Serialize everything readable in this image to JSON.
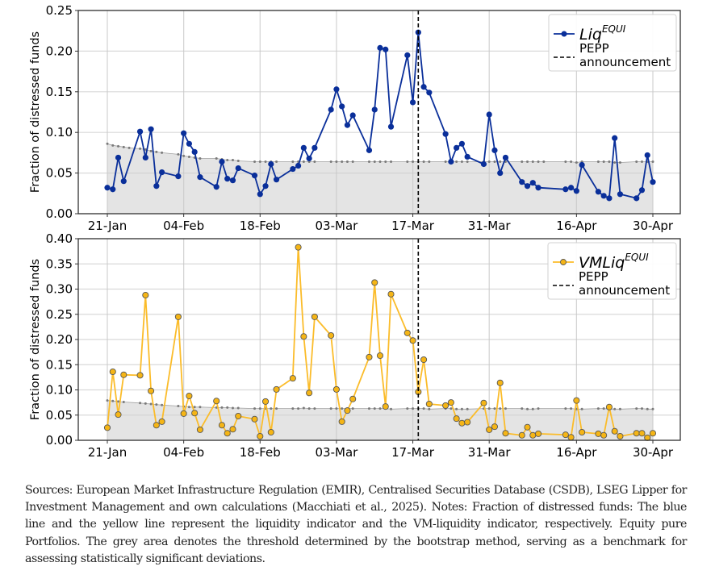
{
  "chart_data": [
    {
      "type": "line",
      "panel": "top",
      "ylabel": "Fraction of distressed funds",
      "xlabel": "",
      "ylim": [
        0.0,
        0.25
      ],
      "yticks": [
        "0.00",
        "0.05",
        "0.10",
        "0.15",
        "0.20",
        "0.25"
      ],
      "ytick_values": [
        0.0,
        0.05,
        0.1,
        0.15,
        0.2,
        0.25
      ],
      "x_unit": "days since 21-Jan",
      "xlim": [
        -5,
        105
      ],
      "xticks": [
        "21-Jan",
        "04-Feb",
        "18-Feb",
        "03-Mar",
        "17-Mar",
        "31-Mar",
        "16-Apr",
        "30-Apr"
      ],
      "xtick_values": [
        0,
        14,
        28,
        42,
        56,
        70,
        86,
        100
      ],
      "grid": true,
      "legend_position": "top-right",
      "vline": {
        "x": 57,
        "label": "PEPP announcement",
        "style": "dashed"
      },
      "series": [
        {
          "name": "Liq",
          "name_superscript": "EQUI",
          "color": "#0a2f9a",
          "marker": "circle",
          "x": [
            0,
            1,
            2,
            3,
            6,
            7,
            8,
            9,
            10,
            13,
            14,
            15,
            16,
            17,
            20,
            21,
            22,
            23,
            24,
            27,
            28,
            29,
            30,
            31,
            34,
            35,
            36,
            37,
            38,
            41,
            42,
            43,
            44,
            45,
            48,
            49,
            50,
            51,
            52,
            55,
            56,
            57,
            58,
            59,
            62,
            63,
            64,
            65,
            66,
            69,
            70,
            71,
            72,
            73,
            76,
            77,
            78,
            79,
            84,
            85,
            86,
            87,
            90,
            91,
            92,
            93,
            94,
            97,
            98,
            99,
            100
          ],
          "values": [
            0.032,
            0.03,
            0.069,
            0.04,
            0.101,
            0.069,
            0.104,
            0.034,
            0.051,
            0.046,
            0.099,
            0.086,
            0.076,
            0.045,
            0.033,
            0.064,
            0.043,
            0.041,
            0.056,
            0.047,
            0.024,
            0.034,
            0.061,
            0.042,
            0.055,
            0.059,
            0.081,
            0.068,
            0.081,
            0.128,
            0.153,
            0.132,
            0.109,
            0.121,
            0.078,
            0.128,
            0.204,
            0.202,
            0.107,
            0.195,
            0.137,
            0.223,
            0.156,
            0.149,
            0.098,
            0.064,
            0.081,
            0.086,
            0.07,
            0.061,
            0.122,
            0.078,
            0.05,
            0.069,
            0.039,
            0.034,
            0.038,
            0.032,
            0.03,
            0.032,
            0.028,
            0.06,
            0.027,
            0.022,
            0.019,
            0.093,
            0.024,
            0.019,
            0.029,
            0.072,
            0.039
          ]
        },
        {
          "name": "Bootstrap threshold",
          "color": "#808080",
          "fill": "#e4e4e4",
          "marker": "small-dot",
          "x": [
            0,
            1,
            2,
            3,
            4,
            6,
            7,
            8,
            9,
            10,
            13,
            14,
            15,
            16,
            17,
            20,
            21,
            22,
            23,
            24,
            27,
            28,
            29,
            30,
            31,
            34,
            35,
            36,
            37,
            38,
            41,
            42,
            43,
            44,
            45,
            48,
            49,
            50,
            51,
            52,
            55,
            56,
            57,
            58,
            59,
            62,
            63,
            64,
            65,
            66,
            69,
            70,
            71,
            72,
            73,
            76,
            77,
            78,
            79,
            80,
            84,
            85,
            86,
            87,
            90,
            91,
            92,
            93,
            94,
            97,
            98,
            99,
            100
          ],
          "values": [
            0.086,
            0.084,
            0.083,
            0.082,
            0.081,
            0.08,
            0.079,
            0.077,
            0.076,
            0.075,
            0.073,
            0.071,
            0.07,
            0.069,
            0.068,
            0.068,
            0.067,
            0.066,
            0.066,
            0.065,
            0.064,
            0.064,
            0.064,
            0.064,
            0.064,
            0.064,
            0.064,
            0.064,
            0.064,
            0.064,
            0.064,
            0.064,
            0.064,
            0.064,
            0.064,
            0.064,
            0.064,
            0.064,
            0.064,
            0.064,
            0.064,
            0.064,
            0.064,
            0.064,
            0.064,
            0.064,
            0.064,
            0.064,
            0.064,
            0.064,
            0.064,
            0.064,
            0.064,
            0.064,
            0.064,
            0.064,
            0.064,
            0.064,
            0.064,
            0.064,
            0.064,
            0.064,
            0.063,
            0.064,
            0.064,
            0.064,
            0.064,
            0.063,
            0.063,
            0.064,
            0.064,
            0.064,
            0.064
          ]
        }
      ]
    },
    {
      "type": "line",
      "panel": "bottom",
      "ylabel": "Fraction of distressed funds",
      "xlabel": "",
      "ylim": [
        0.0,
        0.4
      ],
      "yticks": [
        "0.00",
        "0.05",
        "0.10",
        "0.15",
        "0.20",
        "0.25",
        "0.30",
        "0.35",
        "0.40"
      ],
      "ytick_values": [
        0.0,
        0.05,
        0.1,
        0.15,
        0.2,
        0.25,
        0.3,
        0.35,
        0.4
      ],
      "x_unit": "days since 21-Jan",
      "xlim": [
        -5,
        105
      ],
      "xticks": [
        "21-Jan",
        "04-Feb",
        "18-Feb",
        "03-Mar",
        "17-Mar",
        "31-Mar",
        "16-Apr",
        "30-Apr"
      ],
      "xtick_values": [
        0,
        14,
        28,
        42,
        56,
        70,
        86,
        100
      ],
      "grid": true,
      "legend_position": "top-right",
      "vline": {
        "x": 57,
        "label": "PEPP announcement",
        "style": "dashed"
      },
      "series": [
        {
          "name": "VMLiq",
          "name_superscript": "EQUI",
          "color": "#fbbc2a",
          "marker_fill": "#f5b516",
          "marker_edge": "#555555",
          "marker": "circle",
          "x": [
            0,
            1,
            2,
            3,
            6,
            7,
            8,
            9,
            10,
            13,
            14,
            15,
            16,
            17,
            20,
            21,
            22,
            23,
            24,
            27,
            28,
            29,
            30,
            31,
            34,
            35,
            36,
            37,
            38,
            41,
            42,
            43,
            44,
            45,
            48,
            49,
            50,
            51,
            52,
            55,
            56,
            57,
            58,
            59,
            62,
            63,
            64,
            65,
            66,
            69,
            70,
            71,
            72,
            73,
            76,
            77,
            78,
            79,
            84,
            85,
            86,
            87,
            90,
            91,
            92,
            93,
            94,
            97,
            98,
            99,
            100
          ],
          "values": [
            0.025,
            0.136,
            0.051,
            0.13,
            0.129,
            0.288,
            0.098,
            0.03,
            0.037,
            0.245,
            0.053,
            0.088,
            0.054,
            0.021,
            0.078,
            0.03,
            0.014,
            0.022,
            0.048,
            0.042,
            0.008,
            0.077,
            0.016,
            0.101,
            0.123,
            0.383,
            0.206,
            0.094,
            0.245,
            0.208,
            0.101,
            0.037,
            0.059,
            0.082,
            0.165,
            0.313,
            0.168,
            0.067,
            0.29,
            0.213,
            0.198,
            0.096,
            0.16,
            0.072,
            0.069,
            0.075,
            0.043,
            0.034,
            0.036,
            0.074,
            0.021,
            0.027,
            0.114,
            0.014,
            0.01,
            0.026,
            0.01,
            0.013,
            0.011,
            0.006,
            0.079,
            0.016,
            0.013,
            0.01,
            0.066,
            0.018,
            0.008,
            0.014,
            0.014,
            0.005,
            0.014
          ]
        },
        {
          "name": "Bootstrap threshold",
          "color": "#808080",
          "fill": "#e4e4e4",
          "marker": "small-dot",
          "x": [
            0,
            1,
            2,
            3,
            6,
            7,
            8,
            9,
            10,
            13,
            14,
            15,
            16,
            17,
            20,
            21,
            22,
            23,
            24,
            27,
            28,
            29,
            30,
            31,
            34,
            35,
            36,
            37,
            38,
            41,
            42,
            43,
            44,
            45,
            48,
            49,
            50,
            51,
            52,
            55,
            56,
            57,
            58,
            59,
            62,
            63,
            64,
            65,
            66,
            69,
            70,
            71,
            72,
            73,
            76,
            77,
            78,
            79,
            84,
            85,
            86,
            87,
            90,
            91,
            92,
            93,
            94,
            97,
            98,
            99,
            100
          ],
          "values": [
            0.079,
            0.078,
            0.077,
            0.076,
            0.074,
            0.073,
            0.072,
            0.071,
            0.07,
            0.068,
            0.067,
            0.066,
            0.066,
            0.066,
            0.065,
            0.065,
            0.065,
            0.064,
            0.064,
            0.063,
            0.063,
            0.063,
            0.063,
            0.063,
            0.063,
            0.063,
            0.064,
            0.063,
            0.063,
            0.063,
            0.063,
            0.063,
            0.063,
            0.063,
            0.063,
            0.063,
            0.063,
            0.063,
            0.062,
            0.063,
            0.063,
            0.063,
            0.063,
            0.062,
            0.063,
            0.063,
            0.062,
            0.062,
            0.062,
            0.063,
            0.063,
            0.063,
            0.063,
            0.063,
            0.063,
            0.062,
            0.062,
            0.063,
            0.063,
            0.063,
            0.062,
            0.062,
            0.063,
            0.063,
            0.062,
            0.062,
            0.062,
            0.063,
            0.063,
            0.062,
            0.062
          ]
        }
      ]
    }
  ],
  "legend": {
    "top": {
      "series_name": "Liq",
      "series_sup": "EQUI",
      "vline_line1": "PEPP",
      "vline_line2": "announcement"
    },
    "bottom": {
      "series_name": "VMLiq",
      "series_sup": "EQUI",
      "vline_line1": "PEPP",
      "vline_line2": "announcement"
    }
  },
  "caption": "Sources: European Market Infrastructure Regulation (EMIR), Centralised Securities Database (CSDB), LSEG Lipper for Investment Management and own calculations (Macchiati et al., 2025). Notes: Fraction of distressed funds: The blue line and the yellow line represent the liquidity indicator and the VM-liquidity indicator, respectively. Equity pure Portfolios. The grey area denotes the threshold determined by the bootstrap method, serving as a benchmark for assessing statistically significant deviations."
}
